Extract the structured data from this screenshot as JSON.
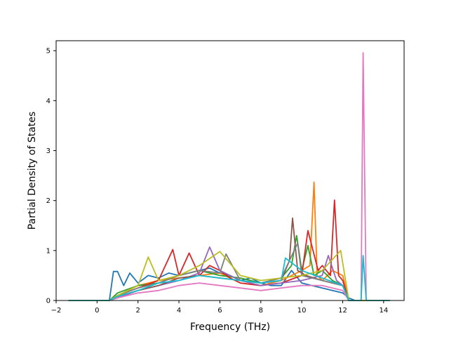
{
  "chart_data": {
    "type": "line",
    "title": "",
    "xlabel": "Frequency (THz)",
    "ylabel": "Partial Density of States",
    "xlim": [
      -2.0,
      15.0
    ],
    "ylim": [
      0,
      5.2
    ],
    "xticks": [
      -2,
      0,
      2,
      4,
      6,
      8,
      10,
      12,
      14
    ],
    "xtick_labels": [
      "−2",
      "0",
      "2",
      "4",
      "6",
      "8",
      "10",
      "12",
      "14"
    ],
    "yticks": [
      0,
      1,
      2,
      3,
      4,
      5
    ],
    "ytick_labels": [
      "0",
      "1",
      "2",
      "3",
      "4",
      "5"
    ],
    "grid": false,
    "legend": "none",
    "series": [
      {
        "color": "#1f77b4",
        "x": [
          -1.4,
          0.6,
          0.8,
          1.0,
          1.3,
          1.6,
          2.0,
          2.5,
          3.0,
          3.5,
          4.0,
          4.5,
          5.0,
          5.5,
          6.0,
          6.5,
          7.0,
          7.5,
          8.0,
          8.5,
          9.0,
          9.5,
          10.0,
          10.5,
          11.0,
          11.5,
          12.0,
          12.3,
          12.6,
          14.3
        ],
        "y": [
          0,
          0,
          0.58,
          0.58,
          0.3,
          0.55,
          0.35,
          0.5,
          0.45,
          0.55,
          0.5,
          0.55,
          0.6,
          0.65,
          0.55,
          0.5,
          0.4,
          0.45,
          0.35,
          0.3,
          0.3,
          0.6,
          0.35,
          0.3,
          0.25,
          0.2,
          0.15,
          0.05,
          0,
          0
        ]
      },
      {
        "color": "#ff7f0e",
        "x": [
          -1.4,
          0.6,
          1.0,
          2.0,
          3.0,
          4.0,
          5.0,
          6.0,
          7.0,
          8.0,
          9.0,
          9.5,
          10.0,
          10.4,
          10.6,
          10.75,
          11.0,
          11.5,
          12.0,
          12.3,
          14.3
        ],
        "y": [
          0,
          0,
          0.1,
          0.3,
          0.4,
          0.45,
          0.5,
          0.55,
          0.35,
          0.3,
          0.4,
          0.5,
          0.6,
          0.7,
          2.37,
          0.5,
          0.4,
          0.6,
          0.5,
          0,
          0
        ]
      },
      {
        "color": "#2ca02c",
        "x": [
          -1.4,
          0.6,
          1.0,
          2.0,
          3.0,
          4.0,
          5.0,
          6.0,
          7.0,
          8.0,
          9.0,
          9.5,
          9.75,
          10.0,
          10.3,
          10.6,
          11.0,
          11.5,
          12.0,
          12.3,
          14.3
        ],
        "y": [
          0,
          0,
          0.15,
          0.3,
          0.35,
          0.5,
          0.6,
          0.5,
          0.45,
          0.35,
          0.45,
          0.7,
          1.3,
          0.6,
          1.1,
          0.5,
          0.6,
          0.4,
          0.3,
          0,
          0
        ]
      },
      {
        "color": "#d62728",
        "x": [
          -1.4,
          0.6,
          1.0,
          2.0,
          3.0,
          3.7,
          4.0,
          4.5,
          5.0,
          5.5,
          6.0,
          6.5,
          7.0,
          8.0,
          9.0,
          10.0,
          10.3,
          10.8,
          11.0,
          11.4,
          11.6,
          11.8,
          12.0,
          12.3,
          14.3
        ],
        "y": [
          0,
          0,
          0.1,
          0.25,
          0.4,
          1.02,
          0.5,
          0.95,
          0.5,
          0.7,
          0.6,
          0.45,
          0.35,
          0.3,
          0.35,
          0.5,
          1.4,
          0.6,
          0.7,
          0.5,
          2.01,
          0.5,
          0.4,
          0,
          0
        ]
      },
      {
        "color": "#9467bd",
        "x": [
          -1.4,
          0.6,
          1.0,
          2.0,
          3.0,
          4.0,
          5.0,
          5.5,
          6.0,
          7.0,
          8.0,
          9.0,
          10.0,
          11.0,
          11.3,
          11.7,
          12.0,
          12.3,
          14.3
        ],
        "y": [
          0,
          0,
          0.05,
          0.2,
          0.3,
          0.4,
          0.55,
          1.07,
          0.6,
          0.4,
          0.3,
          0.35,
          0.4,
          0.5,
          0.9,
          0.4,
          0.3,
          0,
          0
        ]
      },
      {
        "color": "#8c564b",
        "x": [
          -1.4,
          0.6,
          1.0,
          2.0,
          3.0,
          4.0,
          5.0,
          6.0,
          7.0,
          8.0,
          9.0,
          9.4,
          9.55,
          9.8,
          10.2,
          11.0,
          12.0,
          12.3,
          14.3
        ],
        "y": [
          0,
          0,
          0.08,
          0.2,
          0.3,
          0.45,
          0.5,
          0.45,
          0.4,
          0.35,
          0.4,
          0.8,
          1.65,
          0.6,
          0.5,
          0.4,
          0.3,
          0,
          0
        ]
      },
      {
        "color": "#e377c2",
        "x": [
          -1.4,
          0.6,
          1.0,
          2.0,
          3.0,
          4.0,
          5.0,
          6.0,
          7.0,
          8.0,
          9.0,
          10.0,
          11.0,
          12.0,
          12.3,
          12.9,
          13.0,
          13.15,
          14.3
        ],
        "y": [
          0,
          0,
          0.05,
          0.15,
          0.2,
          0.3,
          0.35,
          0.3,
          0.25,
          0.2,
          0.25,
          0.3,
          0.3,
          0.2,
          0,
          0,
          4.96,
          0,
          0
        ]
      },
      {
        "color": "#7f7f7f",
        "x": [
          -1.4,
          0.6,
          1.0,
          2.0,
          3.0,
          4.0,
          5.0,
          6.0,
          6.3,
          7.0,
          8.0,
          9.0,
          9.8,
          10.0,
          11.0,
          12.0,
          12.3,
          14.3
        ],
        "y": [
          0,
          0,
          0.1,
          0.25,
          0.35,
          0.5,
          0.6,
          0.55,
          0.93,
          0.4,
          0.35,
          0.45,
          1.15,
          0.5,
          0.4,
          0.3,
          0,
          0
        ]
      },
      {
        "color": "#bcbd22",
        "x": [
          -1.4,
          0.6,
          1.0,
          2.0,
          2.5,
          3.0,
          4.0,
          5.0,
          6.0,
          7.0,
          8.0,
          9.0,
          10.0,
          11.0,
          11.9,
          12.3,
          14.3
        ],
        "y": [
          0,
          0,
          0.1,
          0.3,
          0.87,
          0.4,
          0.5,
          0.7,
          0.98,
          0.5,
          0.4,
          0.45,
          0.5,
          0.6,
          1.0,
          0,
          0
        ]
      },
      {
        "color": "#17becf",
        "x": [
          -1.4,
          0.6,
          1.0,
          2.0,
          3.0,
          4.0,
          5.0,
          6.0,
          7.0,
          8.0,
          9.0,
          9.2,
          10.0,
          11.0,
          12.0,
          12.3,
          12.9,
          13.0,
          13.15,
          14.3
        ],
        "y": [
          0,
          0,
          0.08,
          0.2,
          0.35,
          0.4,
          0.5,
          0.45,
          0.4,
          0.35,
          0.4,
          0.85,
          0.6,
          0.45,
          0.3,
          0,
          0,
          0.9,
          0,
          0
        ]
      }
    ]
  }
}
